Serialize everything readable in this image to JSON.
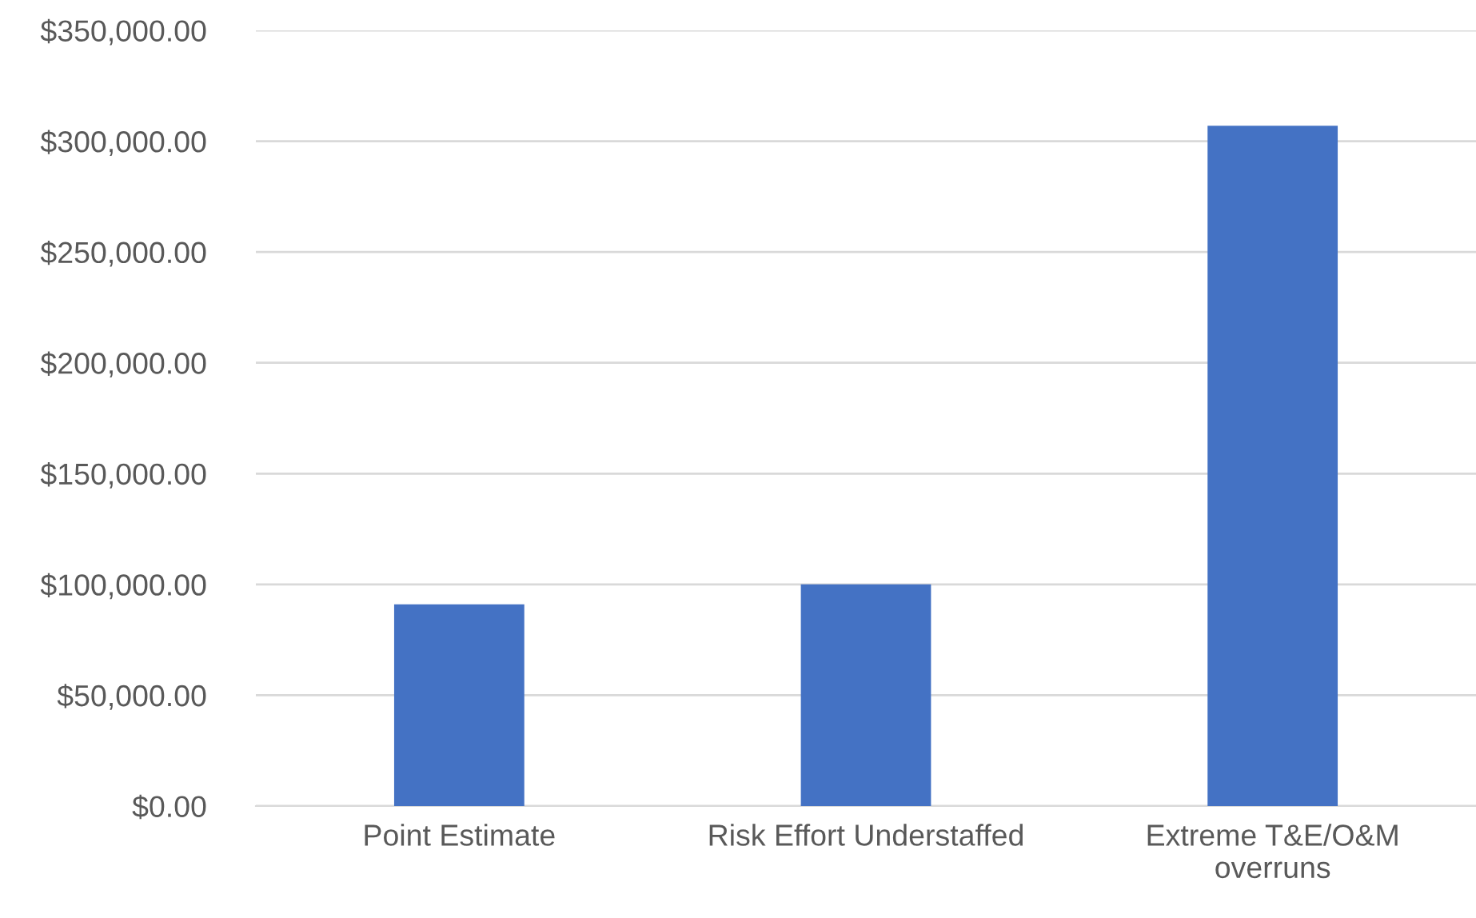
{
  "chart_data": {
    "type": "bar",
    "categories": [
      "Point Estimate",
      "Risk Effort Understaffed",
      "Extreme T&E/O&M\noverruns"
    ],
    "values": [
      91000,
      100000,
      307000
    ],
    "color": "#4472c4",
    "ylim": [
      0,
      350000
    ],
    "yticks": [
      {
        "value": 0,
        "label": "$0.00"
      },
      {
        "value": 50000,
        "label": "$50,000.00"
      },
      {
        "value": 100000,
        "label": "$100,000.00"
      },
      {
        "value": 150000,
        "label": "$150,000.00"
      },
      {
        "value": 200000,
        "label": "$200,000.00"
      },
      {
        "value": 250000,
        "label": "$250,000.00"
      },
      {
        "value": 300000,
        "label": "$300,000.00"
      },
      {
        "value": 350000,
        "label": "$350,000.00"
      }
    ],
    "grid": "y"
  }
}
